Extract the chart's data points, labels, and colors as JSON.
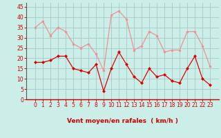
{
  "x": [
    0,
    1,
    2,
    3,
    4,
    5,
    6,
    7,
    8,
    9,
    10,
    11,
    12,
    13,
    14,
    15,
    16,
    17,
    18,
    19,
    20,
    21,
    22,
    23
  ],
  "rafales": [
    35,
    38,
    31,
    35,
    33,
    27,
    25,
    27,
    22,
    14,
    41,
    43,
    39,
    24,
    26,
    33,
    31,
    23,
    24,
    24,
    33,
    33,
    26,
    16
  ],
  "moyen": [
    18,
    18,
    19,
    21,
    21,
    15,
    14,
    13,
    17,
    4,
    15,
    23,
    17,
    11,
    8,
    15,
    11,
    12,
    9,
    8,
    15,
    21,
    10,
    7
  ],
  "bg_color": "#cceee8",
  "grid_color": "#aacccc",
  "line_color_rafales": "#f09090",
  "line_color_moyen": "#dd0000",
  "marker_color_rafales": "#f09090",
  "marker_color_moyen": "#dd0000",
  "xlabel": "Vent moyen/en rafales  ( km/h )",
  "xlabel_color": "#cc0000",
  "tick_color": "#cc0000",
  "ylim": [
    0,
    47
  ],
  "yticks": [
    0,
    5,
    10,
    15,
    20,
    25,
    30,
    35,
    40,
    45
  ],
  "xticks": [
    0,
    1,
    2,
    3,
    4,
    5,
    6,
    7,
    8,
    9,
    10,
    11,
    12,
    13,
    14,
    15,
    16,
    17,
    18,
    19,
    20,
    21,
    22,
    23
  ],
  "spine_left_color": "#555555",
  "spine_bottom_color": "#cc0000"
}
